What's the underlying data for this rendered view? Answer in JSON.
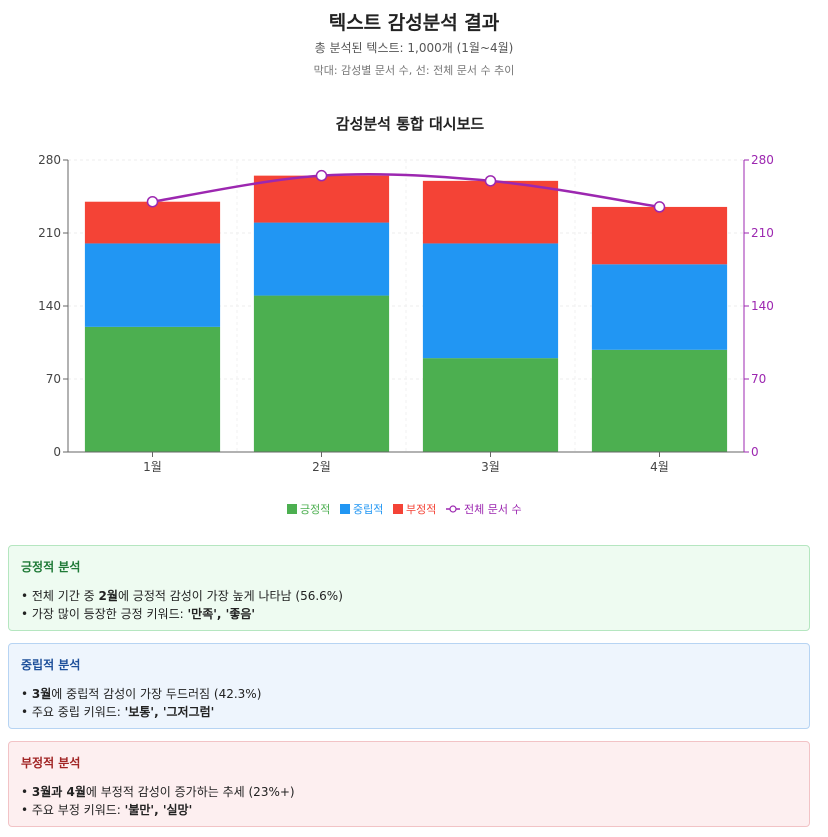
{
  "header": {
    "title": "텍스트 감성분석 결과",
    "subtitle": "총 분석된 텍스트: 1,000개 (1월~4월)",
    "note": "막대: 감성별 문서 수, 선: 전체 문서 수 추이"
  },
  "chart_data": {
    "type": "bar",
    "stacked": true,
    "title": "감성분석 통합 대시보드",
    "categories": [
      "1월",
      "2월",
      "3월",
      "4월"
    ],
    "series": [
      {
        "name": "긍정적",
        "values": [
          120,
          150,
          90,
          98
        ],
        "color": "#4caf50"
      },
      {
        "name": "중립적",
        "values": [
          80,
          70,
          110,
          82
        ],
        "color": "#2196f3"
      },
      {
        "name": "부정적",
        "values": [
          40,
          45,
          60,
          55
        ],
        "color": "#f44336"
      }
    ],
    "line_series": {
      "name": "전체 문서 수",
      "values": [
        240,
        265,
        260,
        235
      ],
      "color": "#9c27b0"
    },
    "ylim": [
      0,
      280
    ],
    "yticks": [
      0,
      70,
      140,
      210,
      280
    ],
    "y2lim": [
      0,
      280
    ],
    "y2ticks": [
      0,
      70,
      140,
      210,
      280
    ],
    "grid": true,
    "legend_position": "bottom-center"
  },
  "panels": {
    "positive": {
      "title": "긍정적 분석",
      "line1": "• 전체 기간 중 ",
      "line1_bold": "2월",
      "line1_rest": "에 긍정적 감성이 가장 높게 나타남 (56.6%)",
      "line2": "• 가장 많이 등장한 긍정 키워드: ",
      "line2_bold": "'만족', '좋음'"
    },
    "neutral": {
      "title": "중립적 분석",
      "line1_pre": "• ",
      "line1_bold": "3월",
      "line1_rest": "에 중립적 감성이 가장 두드러짐 (42.3%)",
      "line2": "• 주요 중립 키워드: ",
      "line2_bold": "'보통', '그저그럼'"
    },
    "negative": {
      "title": "부정적 분석",
      "line1_pre": "• ",
      "line1_bold": "3월과 4월",
      "line1_rest": "에 부정적 감성이 증가하는 추세 (23%+)",
      "line2": "• 주요 부정 키워드: ",
      "line2_bold": "'불만', '실망'"
    }
  }
}
